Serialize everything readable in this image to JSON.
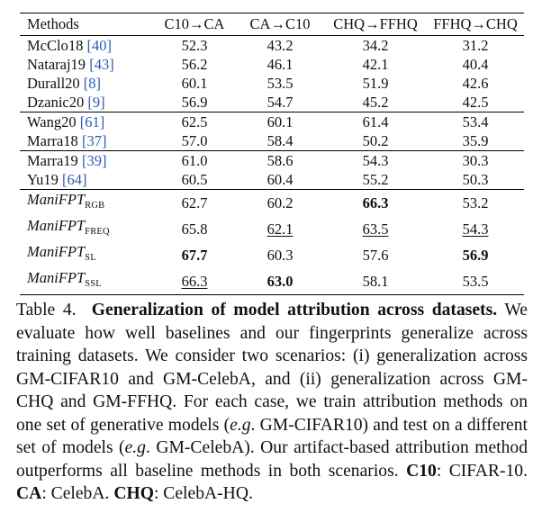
{
  "table": {
    "headers": [
      "Methods",
      "C10→CA",
      "CA→C10",
      "CHQ→FFHQ",
      "FFHQ→CHQ"
    ],
    "rows": [
      {
        "name": "McClo18",
        "cite": "40",
        "values": [
          "52.3",
          "43.2",
          "34.2",
          "31.2"
        ]
      },
      {
        "name": "Nataraj19",
        "cite": "43",
        "values": [
          "56.2",
          "46.1",
          "42.1",
          "40.4"
        ]
      },
      {
        "name": "Durall20",
        "cite": "8",
        "values": [
          "60.1",
          "53.5",
          "51.9",
          "42.6"
        ]
      },
      {
        "name": "Dzanic20",
        "cite": "9",
        "values": [
          "56.9",
          "54.7",
          "45.2",
          "42.5"
        ]
      },
      {
        "name": "Wang20",
        "cite": "61",
        "values": [
          "62.5",
          "60.1",
          "61.4",
          "53.4"
        ]
      },
      {
        "name": "Marra18",
        "cite": "37",
        "values": [
          "57.0",
          "58.4",
          "50.2",
          "35.9"
        ]
      },
      {
        "name": "Marra19",
        "cite": "39",
        "values": [
          "61.0",
          "58.6",
          "54.3",
          "30.3"
        ]
      },
      {
        "name": "Yu19",
        "cite": "64",
        "values": [
          "60.5",
          "60.4",
          "55.2",
          "50.3"
        ]
      },
      {
        "name": "ManiFPT",
        "sub": "RGB",
        "values": [
          "62.7",
          "60.2",
          "66.3",
          "53.2"
        ]
      },
      {
        "name": "ManiFPT",
        "sub": "FREQ",
        "values": [
          "65.8",
          "62.1",
          "63.5",
          "54.3"
        ]
      },
      {
        "name": "ManiFPT",
        "sub": "SL",
        "values": [
          "67.7",
          "60.3",
          "57.6",
          "56.9"
        ]
      },
      {
        "name": "ManiFPT",
        "sub": "SSL",
        "values": [
          "66.3",
          "63.0",
          "58.1",
          "53.5"
        ]
      }
    ]
  },
  "caption": {
    "label": "Table 4.",
    "title": "Generalization of model attribution across datasets.",
    "body1": "We evaluate how well baselines and our fingerprints generalize across training datasets. We consider two scenarios: (i) generalization across GM-CIFAR10 and GM-CelebA, and (ii) generalization across GM-CHQ and GM-FFHQ. For each case, we train attribution methods on one set of generative models (",
    "eg1": "e.g",
    "body2": ". GM-CIFAR10) and test on a different set of models (",
    "eg2": "e.g",
    "body3": ". GM-CelebA). Our artifact-based attribution method outperforms all baseline methods in both scenarios. ",
    "abbr1_key": "C10",
    "abbr1_val": ": CIFAR-10. ",
    "abbr2_key": "CA",
    "abbr2_val": ": CelebA. ",
    "abbr3_key": "CHQ",
    "abbr3_val": ": CelebA-HQ."
  }
}
